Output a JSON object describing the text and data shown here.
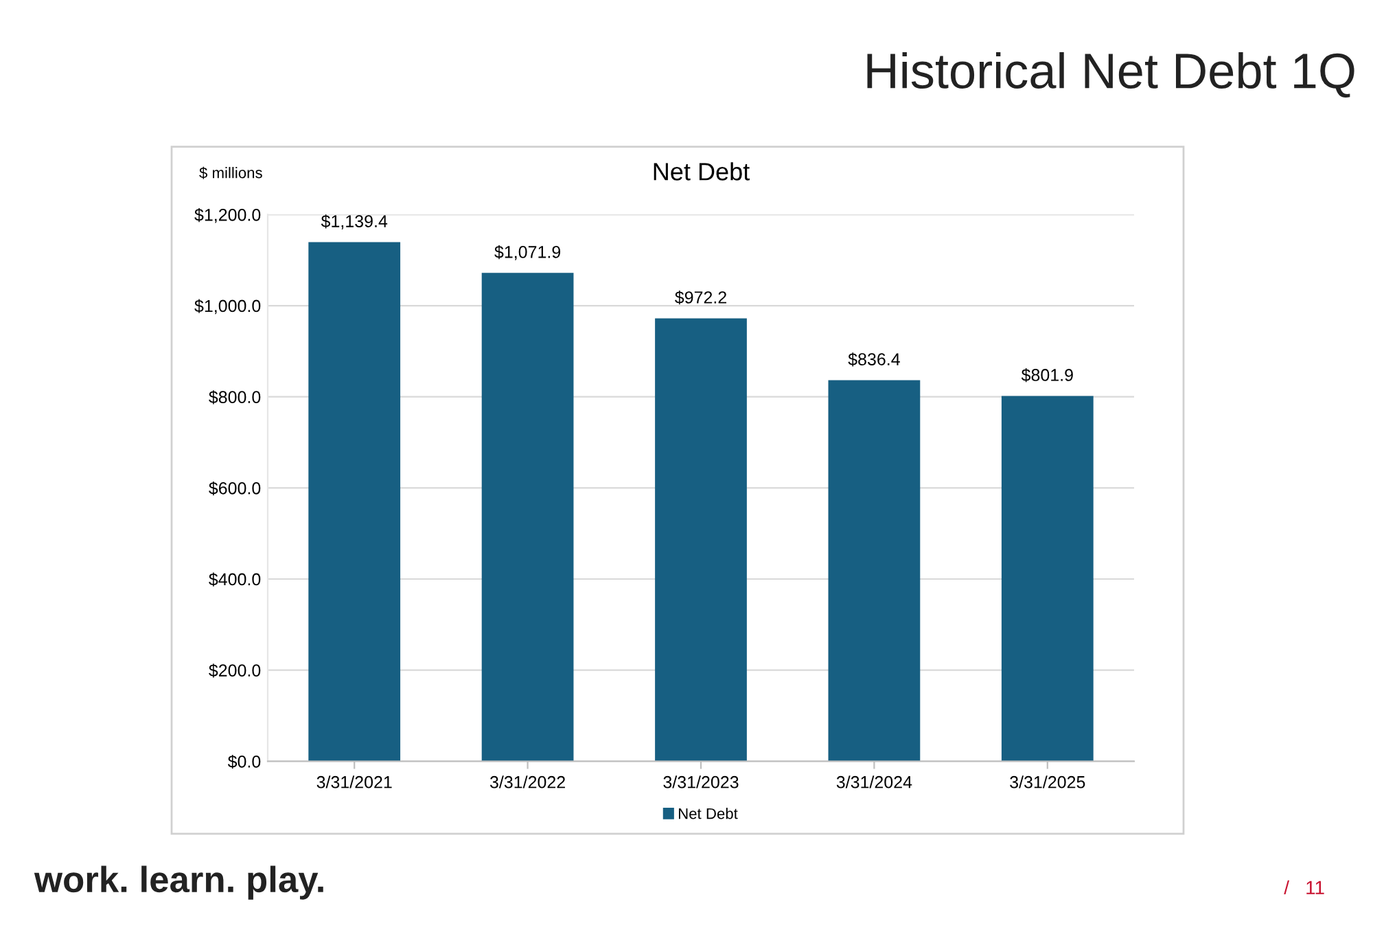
{
  "chart_data": {
    "type": "bar",
    "title": "Historical Net Debt 1Q",
    "subtitle": "Net Debt",
    "ylabel": "$ millions",
    "categories": [
      "3/31/2021",
      "3/31/2022",
      "3/31/2023",
      "3/31/2024",
      "3/31/2025"
    ],
    "series": [
      {
        "name": "Net Debt",
        "color": "#175f82",
        "values": [
          1139.4,
          1071.9,
          972.2,
          836.4,
          801.9
        ],
        "value_labels": [
          "$1,139.4",
          "$1,071.9",
          "$972.2",
          "$836.4",
          "$801.9"
        ]
      }
    ],
    "ylim": [
      0,
      1200
    ],
    "yticks": [
      {
        "value": 0,
        "label": "$0.0"
      },
      {
        "value": 200,
        "label": "$200.0"
      },
      {
        "value": 400,
        "label": "$400.0"
      },
      {
        "value": 600,
        "label": "$600.0"
      },
      {
        "value": 800,
        "label": "$800.0"
      },
      {
        "value": 1000,
        "label": "$1,000.0"
      },
      {
        "value": 1200,
        "label": "$1,200.0"
      }
    ],
    "grid": "y",
    "legend": "bottom",
    "annotations": [
      "work. learn. play.",
      "/   11"
    ]
  }
}
